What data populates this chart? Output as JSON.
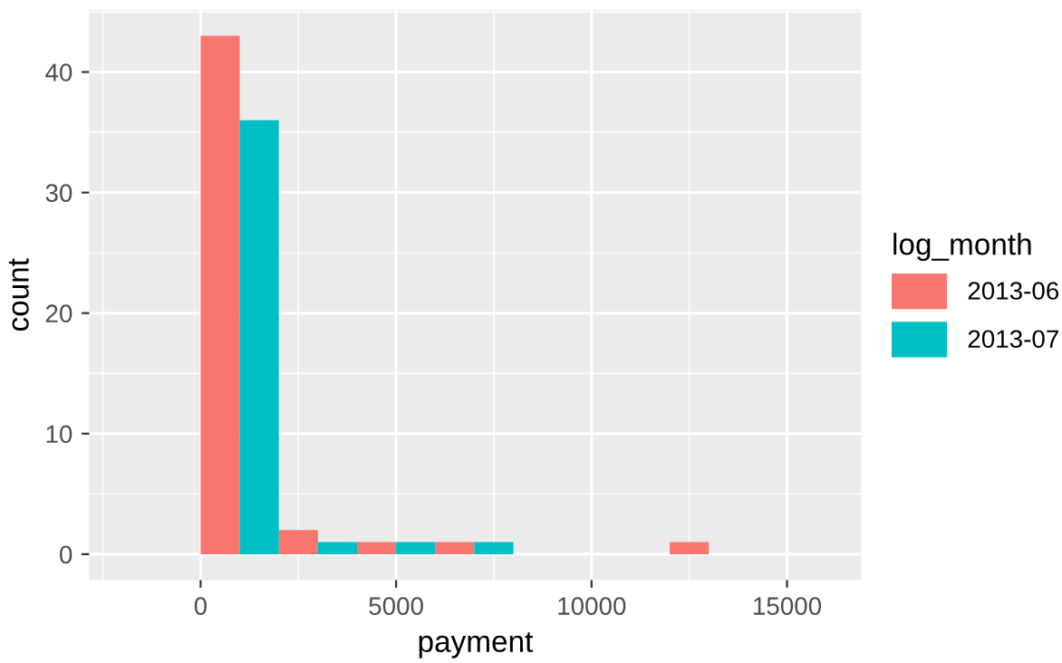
{
  "chart_data": {
    "type": "histogram",
    "xlabel": "payment",
    "ylabel": "count",
    "legend_title": "log_month",
    "bins": [
      0,
      2000,
      4000,
      6000,
      8000,
      10000,
      12000,
      14000
    ],
    "series": [
      {
        "name": "2013-06",
        "color": "#f8766d",
        "values": [
          43,
          2,
          1,
          1,
          0,
          0,
          1
        ]
      },
      {
        "name": "2013-07",
        "color": "#00bfc4",
        "values": [
          36,
          1,
          1,
          1,
          0,
          0,
          0
        ]
      }
    ],
    "xlim": [
      -2850,
      16900
    ],
    "ylim": [
      -2.15,
      45.15
    ],
    "xticks": [
      0,
      5000,
      10000,
      15000
    ],
    "yticks": [
      0,
      10,
      20,
      30,
      40
    ],
    "grid": true,
    "legend": "right"
  }
}
